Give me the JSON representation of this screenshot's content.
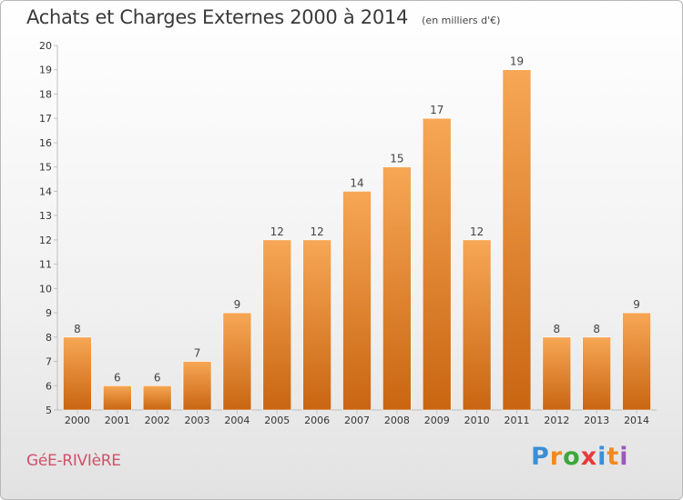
{
  "title": "Achats et Charges Externes 2000 à 2014",
  "unit_label": "(en milliers d'€)",
  "commune": "GéE-RIVIèRE",
  "logo": {
    "letters": [
      "P",
      "r",
      "o",
      "x",
      "i",
      "t",
      "i"
    ],
    "colors": [
      "#3a8fd6",
      "#f08a1e",
      "#3aa83a",
      "#e63b3b",
      "#3a8fd6",
      "#f08a1e",
      "#9b59b6"
    ]
  },
  "colors": {
    "bar_light": "#f7a755",
    "bar_dark": "#c96512",
    "axis": "#c0c0c0"
  },
  "chart_data": {
    "type": "bar",
    "categories": [
      "2000",
      "2001",
      "2002",
      "2003",
      "2004",
      "2005",
      "2006",
      "2007",
      "2008",
      "2009",
      "2010",
      "2011",
      "2012",
      "2013",
      "2014"
    ],
    "values": [
      8,
      6,
      6,
      7,
      9,
      12,
      12,
      14,
      15,
      17,
      12,
      19,
      8,
      8,
      9
    ],
    "ylim": [
      5,
      20
    ],
    "yticks": [
      5,
      6,
      7,
      8,
      9,
      10,
      11,
      12,
      13,
      14,
      15,
      16,
      17,
      18,
      19,
      20
    ],
    "title": "Achats et Charges Externes 2000 à 2014",
    "xlabel": "",
    "ylabel": "",
    "grid": false,
    "data_labels": true
  }
}
